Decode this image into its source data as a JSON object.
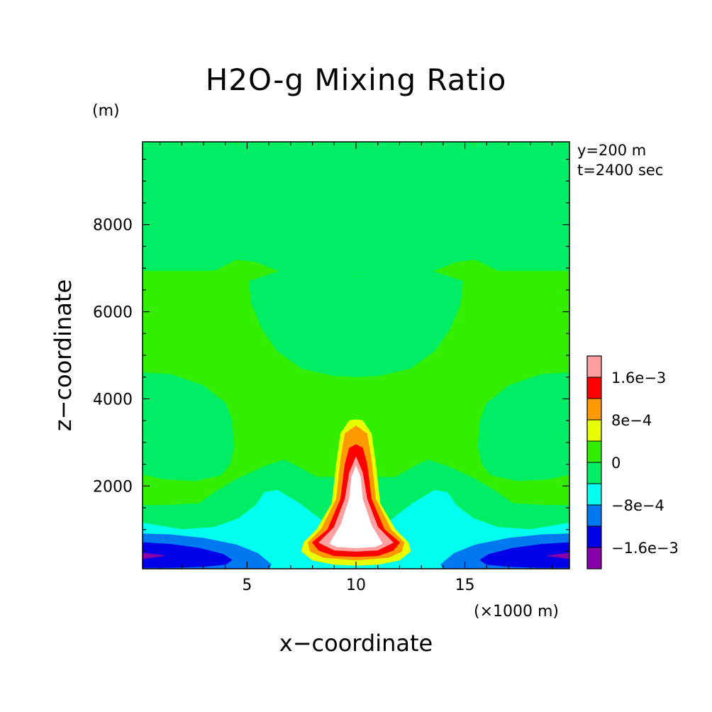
{
  "chart_data": {
    "type": "heatmap",
    "title": "H2O-g Mixing Ratio",
    "xlabel": "x−coordinate",
    "ylabel": "z−coordinate",
    "x_unit": "(×1000 m)",
    "y_unit": "(m)",
    "annotations": [
      "y=200 m",
      "t=2400 sec"
    ],
    "xlim": [
      0.2,
      19.8
    ],
    "ylim": [
      100,
      9900
    ],
    "x_ticks": [
      5,
      10,
      15
    ],
    "x_tick_labels": [
      "5",
      "10",
      "15"
    ],
    "y_ticks": [
      2000,
      4000,
      6000,
      8000
    ],
    "y_tick_labels": [
      "2000",
      "4000",
      "6000",
      "8000"
    ],
    "colorbar": {
      "levels": [
        -0.002,
        -0.0016,
        -0.0012,
        -0.0008,
        -0.0004,
        0,
        0.0004,
        0.0008,
        0.0012,
        0.0016,
        0.002
      ],
      "colors": [
        "#8800aa",
        "#0000e8",
        "#0078f0",
        "#00ffee",
        "#00ee66",
        "#33ee00",
        "#e8ff00",
        "#ff9900",
        "#ff0000",
        "#ffa0a0"
      ],
      "labels": [
        {
          "text": "−1.6e−3",
          "value": -0.0016
        },
        {
          "text": "−8e−4",
          "value": -0.0008
        },
        {
          "text": "0",
          "value": 0
        },
        {
          "text": "8e−4",
          "value": 0.0008
        },
        {
          "text": "1.6e−3",
          "value": 0.0016
        }
      ]
    },
    "regions": [
      {
        "name": "background",
        "color": "#33ee00",
        "value_range": [
          0,
          0.0004
        ]
      },
      {
        "name": "upper-left column",
        "color": "#00ee66",
        "value_range": [
          -0.0004,
          0
        ],
        "polygon": [
          [
            0.2,
            9900
          ],
          [
            4.5,
            9900
          ],
          [
            4.6,
            9700
          ],
          [
            4.5,
            7200
          ],
          [
            3.5,
            6950
          ],
          [
            0.2,
            6950
          ]
        ]
      },
      {
        "name": "upper-right column",
        "color": "#00ee66",
        "value_range": [
          -0.0004,
          0
        ],
        "polygon": [
          [
            19.8,
            9900
          ],
          [
            15.5,
            9900
          ],
          [
            15.4,
            9700
          ],
          [
            15.5,
            7200
          ],
          [
            16.5,
            6950
          ],
          [
            19.8,
            6950
          ]
        ]
      },
      {
        "name": "center column",
        "color": "#00ee66",
        "value_range": [
          -0.0004,
          0
        ],
        "polygon": [
          [
            4.6,
            9900
          ],
          [
            15.4,
            9900
          ],
          [
            15.5,
            7200
          ],
          [
            14.6,
            7150
          ],
          [
            13.5,
            6930
          ],
          [
            10,
            6820
          ],
          [
            6.5,
            6930
          ],
          [
            5.4,
            7150
          ],
          [
            4.5,
            7200
          ]
        ]
      },
      {
        "name": "mid dome",
        "color": "#00ee66",
        "value_range": [
          -0.0004,
          0
        ],
        "polygon": [
          [
            5.1,
            6700
          ],
          [
            6.5,
            6930
          ],
          [
            10,
            6800
          ],
          [
            13.5,
            6930
          ],
          [
            14.9,
            6700
          ],
          [
            14.8,
            6200
          ],
          [
            14.3,
            5600
          ],
          [
            13.6,
            5100
          ],
          [
            12.5,
            4700
          ],
          [
            11,
            4530
          ],
          [
            10,
            4510
          ],
          [
            9,
            4530
          ],
          [
            7.5,
            4700
          ],
          [
            6.4,
            5100
          ],
          [
            5.7,
            5600
          ],
          [
            5.2,
            6200
          ]
        ]
      },
      {
        "name": "left middle blob",
        "color": "#00ee66",
        "value_range": [
          -0.0004,
          0
        ],
        "polygon": [
          [
            0.2,
            4600
          ],
          [
            1.5,
            4560
          ],
          [
            3,
            4300
          ],
          [
            4,
            3900
          ],
          [
            4.3,
            3500
          ],
          [
            4.4,
            2900
          ],
          [
            4.2,
            2500
          ],
          [
            3.8,
            2250
          ],
          [
            2.6,
            2120
          ],
          [
            1.2,
            2160
          ],
          [
            0.2,
            2270
          ]
        ]
      },
      {
        "name": "right middle blob",
        "color": "#00ee66",
        "value_range": [
          -0.0004,
          0
        ],
        "polygon": [
          [
            19.8,
            4600
          ],
          [
            18.5,
            4560
          ],
          [
            17,
            4300
          ],
          [
            16,
            3900
          ],
          [
            15.7,
            3500
          ],
          [
            15.6,
            2900
          ],
          [
            15.8,
            2500
          ],
          [
            16.2,
            2250
          ],
          [
            17.4,
            2120
          ],
          [
            18.8,
            2160
          ],
          [
            19.8,
            2270
          ]
        ]
      },
      {
        "name": "lower band",
        "color": "#00ee66",
        "value_range": [
          -0.0004,
          0
        ],
        "polygon": [
          [
            0.2,
            1550
          ],
          [
            0.2,
            100
          ],
          [
            19.8,
            100
          ],
          [
            19.8,
            1550
          ],
          [
            18.5,
            1560
          ],
          [
            17.2,
            1600
          ],
          [
            16.5,
            1850
          ],
          [
            15.5,
            2150
          ],
          [
            14.2,
            2450
          ],
          [
            13.3,
            2600
          ],
          [
            12.7,
            2450
          ],
          [
            11.8,
            2200
          ],
          [
            8.2,
            2200
          ],
          [
            7.3,
            2450
          ],
          [
            6.7,
            2600
          ],
          [
            5.8,
            2450
          ],
          [
            4.5,
            2150
          ],
          [
            3.5,
            1850
          ],
          [
            2.8,
            1600
          ],
          [
            1.5,
            1560
          ]
        ]
      },
      {
        "name": "cyan band",
        "color": "#00ffee",
        "value_range": [
          -0.0008,
          -0.0004
        ],
        "polygon": [
          [
            0.2,
            1150
          ],
          [
            0.2,
            100
          ],
          [
            19.8,
            100
          ],
          [
            19.8,
            1150
          ],
          [
            18,
            1000
          ],
          [
            16.5,
            1050
          ],
          [
            15.4,
            1250
          ],
          [
            14.6,
            1550
          ],
          [
            14.2,
            1850
          ],
          [
            13.6,
            1900
          ],
          [
            12.6,
            1600
          ],
          [
            11.3,
            1100
          ],
          [
            10,
            900
          ],
          [
            8.7,
            1100
          ],
          [
            7.4,
            1600
          ],
          [
            6.4,
            1900
          ],
          [
            5.8,
            1850
          ],
          [
            5.4,
            1550
          ],
          [
            4.6,
            1250
          ],
          [
            3.5,
            1050
          ],
          [
            2,
            1000
          ]
        ]
      },
      {
        "name": "left blue wedge",
        "color": "#0078f0",
        "value_range": [
          -0.0012,
          -0.0008
        ],
        "polygon": [
          [
            0.2,
            900
          ],
          [
            1.5,
            880
          ],
          [
            3,
            800
          ],
          [
            4.5,
            650
          ],
          [
            5.5,
            450
          ],
          [
            6.1,
            200
          ],
          [
            6,
            100
          ],
          [
            0.2,
            100
          ]
        ]
      },
      {
        "name": "right blue wedge",
        "color": "#0078f0",
        "value_range": [
          -0.0012,
          -0.0008
        ],
        "polygon": [
          [
            19.8,
            900
          ],
          [
            18.5,
            880
          ],
          [
            17,
            800
          ],
          [
            15.5,
            650
          ],
          [
            14.5,
            450
          ],
          [
            13.9,
            200
          ],
          [
            14,
            100
          ],
          [
            19.8,
            100
          ]
        ]
      },
      {
        "name": "left dark blue core",
        "color": "#0000e8",
        "value_range": [
          -0.0016,
          -0.0012
        ],
        "polygon": [
          [
            0.2,
            700
          ],
          [
            1.5,
            660
          ],
          [
            2.8,
            570
          ],
          [
            3.9,
            430
          ],
          [
            4.3,
            300
          ],
          [
            4,
            200
          ],
          [
            3,
            150
          ],
          [
            1.5,
            130
          ],
          [
            0.2,
            130
          ]
        ]
      },
      {
        "name": "right dark blue core",
        "color": "#0000e8",
        "value_range": [
          -0.0016,
          -0.0012
        ],
        "polygon": [
          [
            19.8,
            700
          ],
          [
            18.5,
            660
          ],
          [
            17.2,
            570
          ],
          [
            16.1,
            430
          ],
          [
            15.7,
            300
          ],
          [
            16,
            200
          ],
          [
            17,
            150
          ],
          [
            18.5,
            130
          ],
          [
            19.8,
            130
          ]
        ]
      },
      {
        "name": "left purple tip",
        "color": "#8800aa",
        "value_range": [
          -0.002,
          -0.0016
        ],
        "polygon": [
          [
            0.2,
            460
          ],
          [
            1.2,
            400
          ],
          [
            0.2,
            330
          ]
        ]
      },
      {
        "name": "right purple tip",
        "color": "#8800aa",
        "value_range": [
          -0.002,
          -0.0016
        ],
        "polygon": [
          [
            19.8,
            460
          ],
          [
            18.8,
            400
          ],
          [
            19.8,
            330
          ]
        ]
      },
      {
        "name": "plume 4e-4",
        "color": "#e8ff00",
        "value_range": [
          0.0004,
          0.0008
        ],
        "polygon": [
          [
            7.6,
            700
          ],
          [
            8.2,
            1000
          ],
          [
            8.9,
            1600
          ],
          [
            9.1,
            2500
          ],
          [
            9.3,
            3200
          ],
          [
            9.7,
            3500
          ],
          [
            10,
            3520
          ],
          [
            10.3,
            3500
          ],
          [
            10.7,
            3200
          ],
          [
            10.9,
            2500
          ],
          [
            11.1,
            1600
          ],
          [
            11.8,
            1000
          ],
          [
            12.4,
            700
          ],
          [
            12.5,
            500
          ],
          [
            12,
            300
          ],
          [
            11,
            200
          ],
          [
            10,
            180
          ],
          [
            9,
            200
          ],
          [
            8,
            300
          ],
          [
            7.5,
            500
          ]
        ]
      },
      {
        "name": "plume 8e-4",
        "color": "#ff9900",
        "value_range": [
          0.0008,
          0.0012
        ],
        "polygon": [
          [
            7.8,
            700
          ],
          [
            8.4,
            1000
          ],
          [
            9.1,
            1700
          ],
          [
            9.3,
            2600
          ],
          [
            9.5,
            3200
          ],
          [
            10,
            3380
          ],
          [
            10.5,
            3200
          ],
          [
            10.7,
            2600
          ],
          [
            10.9,
            1700
          ],
          [
            11.6,
            1000
          ],
          [
            12.2,
            700
          ],
          [
            12.1,
            500
          ],
          [
            11.5,
            360
          ],
          [
            10,
            300
          ],
          [
            8.5,
            360
          ],
          [
            7.9,
            500
          ]
        ]
      },
      {
        "name": "plume 1.2e-3",
        "color": "#ff0000",
        "value_range": [
          0.0012,
          0.0016
        ],
        "polygon": [
          [
            8,
            700
          ],
          [
            8.7,
            1000
          ],
          [
            9.3,
            1700
          ],
          [
            9.5,
            2500
          ],
          [
            9.7,
            2870
          ],
          [
            10,
            2950
          ],
          [
            10.3,
            2870
          ],
          [
            10.5,
            2500
          ],
          [
            10.7,
            1700
          ],
          [
            11.3,
            1000
          ],
          [
            12,
            700
          ],
          [
            11.7,
            520
          ],
          [
            11,
            400
          ],
          [
            10,
            380
          ],
          [
            9,
            400
          ],
          [
            8.3,
            520
          ]
        ]
      },
      {
        "name": "plume 1.6e-3",
        "color": "#ffa0a0",
        "value_range": [
          0.0016,
          0.002
        ],
        "polygon": [
          [
            8.3,
            700
          ],
          [
            9,
            1050
          ],
          [
            9.5,
            1700
          ],
          [
            9.7,
            2300
          ],
          [
            10,
            2660
          ],
          [
            10.3,
            2300
          ],
          [
            10.5,
            1700
          ],
          [
            11,
            1050
          ],
          [
            11.7,
            700
          ],
          [
            11,
            530
          ],
          [
            10,
            500
          ],
          [
            9,
            530
          ]
        ]
      },
      {
        "name": "plume core",
        "color": "#ffffff",
        "value_range": [
          0.002,
          null
        ],
        "polygon": [
          [
            8.8,
            680
          ],
          [
            9.3,
            1100
          ],
          [
            9.7,
            1700
          ],
          [
            9.8,
            2200
          ],
          [
            10,
            2450
          ],
          [
            10.2,
            2200
          ],
          [
            10.3,
            1700
          ],
          [
            10.7,
            1100
          ],
          [
            11.2,
            680
          ],
          [
            10.9,
            610
          ],
          [
            10,
            580
          ],
          [
            9.1,
            610
          ]
        ]
      }
    ]
  }
}
